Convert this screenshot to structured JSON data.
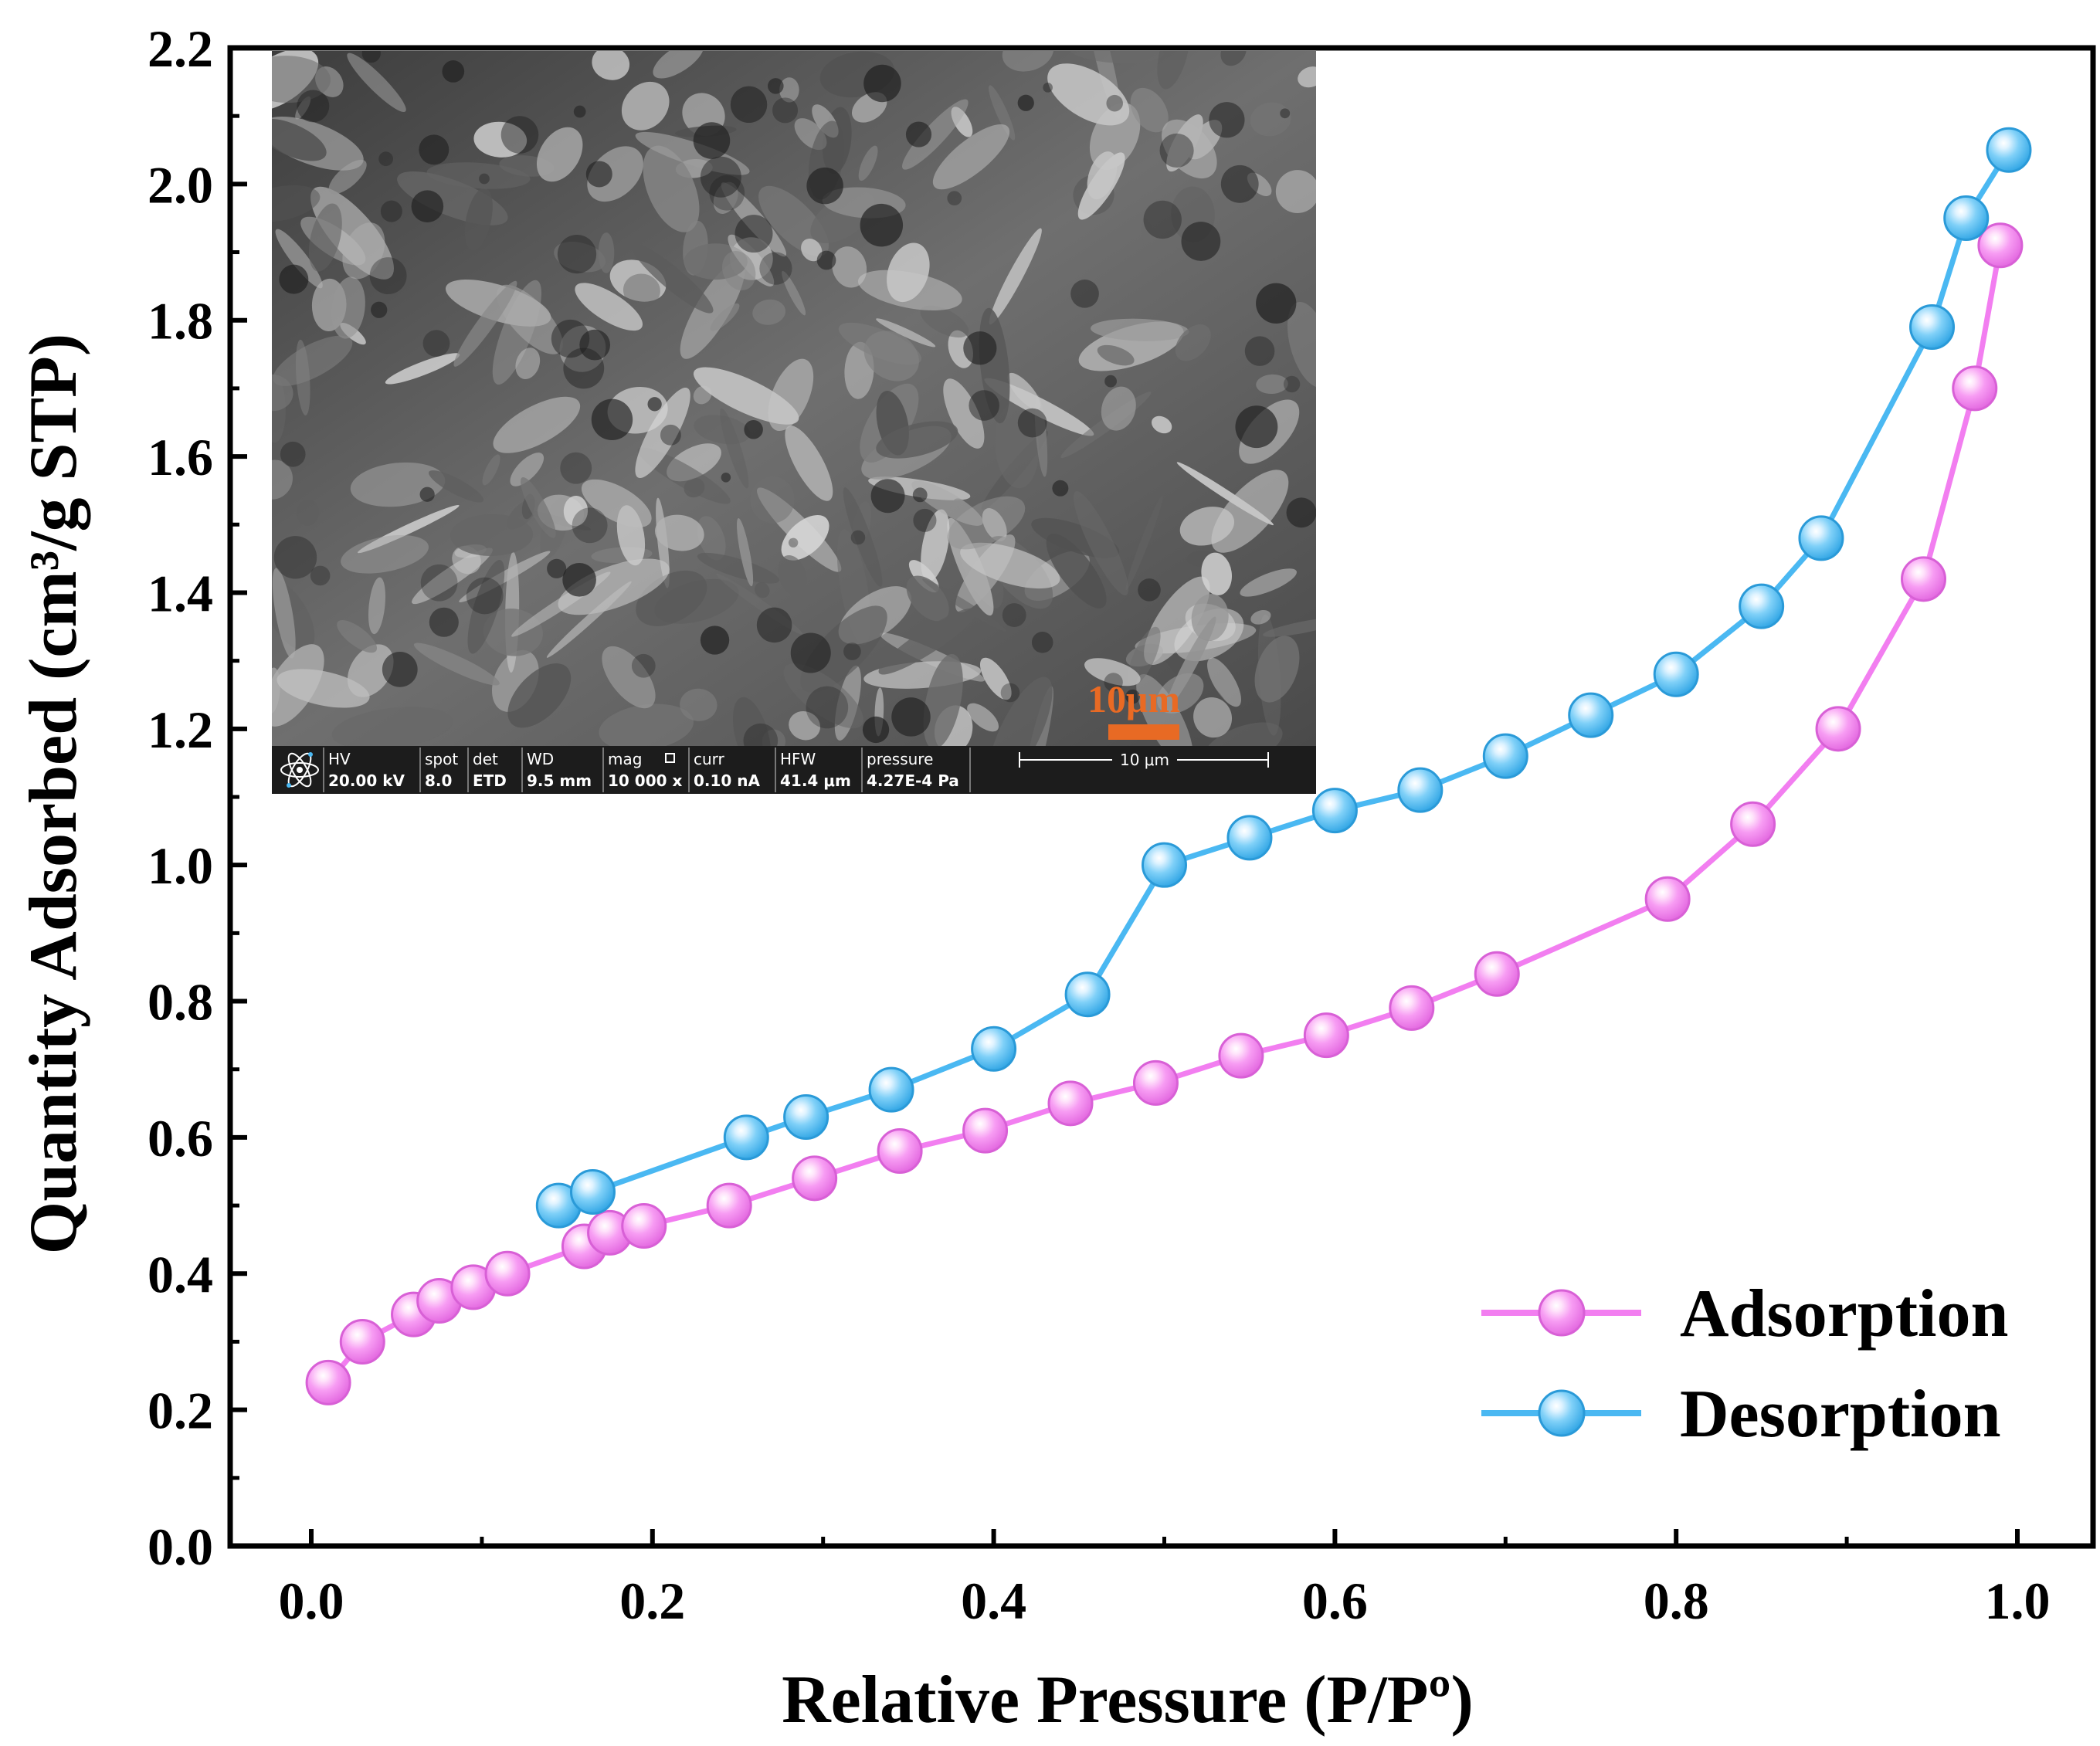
{
  "chart_data": {
    "type": "line",
    "xlabel": "Relative Pressure (P/Pº)",
    "ylabel": "Quantity Adsorbed (cm³/g STP)",
    "xlim": [
      -0.05,
      1.05
    ],
    "ylim": [
      0.0,
      2.2
    ],
    "x_ticks": [
      "0.0",
      "0.2",
      "0.4",
      "0.6",
      "0.8",
      "1.0"
    ],
    "y_ticks": [
      "0.0",
      "0.2",
      "0.4",
      "0.6",
      "0.8",
      "1.0",
      "1.2",
      "1.4",
      "1.6",
      "1.8",
      "2.0",
      "2.2"
    ],
    "legend_position": "bottom-right",
    "series": [
      {
        "name": "Adsorption",
        "color": "#f27ef0",
        "x": [
          0.01,
          0.03,
          0.06,
          0.075,
          0.095,
          0.115,
          0.16,
          0.175,
          0.195,
          0.245,
          0.295,
          0.345,
          0.395,
          0.445,
          0.495,
          0.545,
          0.595,
          0.645,
          0.695,
          0.795,
          0.845,
          0.895,
          0.945,
          0.975,
          0.99
        ],
        "y": [
          0.24,
          0.3,
          0.34,
          0.36,
          0.38,
          0.4,
          0.44,
          0.46,
          0.47,
          0.5,
          0.54,
          0.58,
          0.61,
          0.65,
          0.68,
          0.72,
          0.75,
          0.79,
          0.84,
          0.95,
          1.06,
          1.2,
          1.42,
          1.7,
          1.91
        ]
      },
      {
        "name": "Desorption",
        "color": "#4ab8f2",
        "x": [
          0.145,
          0.165,
          0.255,
          0.29,
          0.34,
          0.4,
          0.455,
          0.5,
          0.55,
          0.6,
          0.65,
          0.7,
          0.75,
          0.8,
          0.85,
          0.885,
          0.95,
          0.97,
          0.995
        ],
        "y": [
          0.5,
          0.52,
          0.6,
          0.63,
          0.67,
          0.73,
          0.81,
          1.0,
          1.04,
          1.08,
          1.11,
          1.16,
          1.22,
          1.28,
          1.38,
          1.48,
          1.79,
          1.95,
          2.05
        ]
      }
    ]
  },
  "inset": {
    "scale_label": "10μm",
    "info_bar": [
      {
        "label": "HV",
        "value": "20.00 kV"
      },
      {
        "label": "spot",
        "value": "8.0"
      },
      {
        "label": "det",
        "value": "ETD"
      },
      {
        "label": "WD",
        "value": "9.5 mm"
      },
      {
        "label": "mag",
        "value": "10 000 x"
      },
      {
        "label": "curr",
        "value": "0.10 nA"
      },
      {
        "label": "HFW",
        "value": "41.4 μm"
      },
      {
        "label": "pressure",
        "value": "4.27E-4 Pa"
      }
    ],
    "bar_scale_label": "10 μm"
  }
}
